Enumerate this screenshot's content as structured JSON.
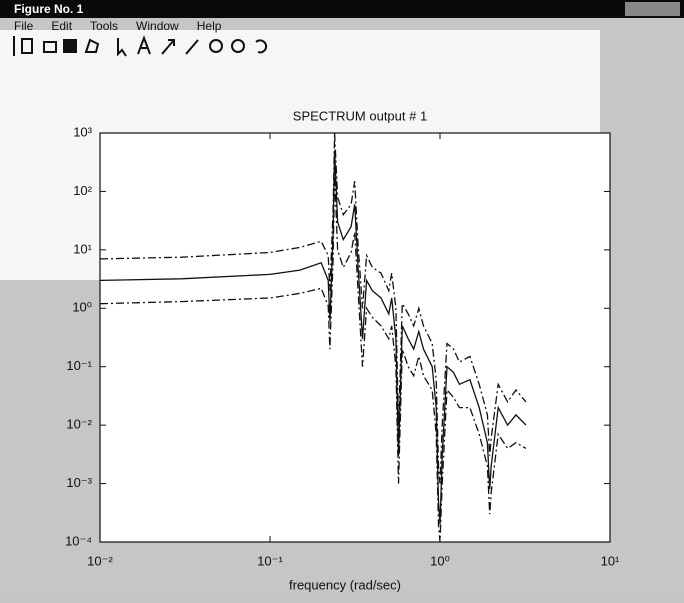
{
  "window": {
    "title": "Figure No. 1",
    "menu": [
      "File",
      "Edit",
      "Tools",
      "Window",
      "Help"
    ]
  },
  "chart_data": {
    "type": "line",
    "title": "SPECTRUM output # 1",
    "x_label": "frequency (rad/sec)",
    "xscale": "log",
    "yscale": "log",
    "grid": false,
    "xlim": [
      0.01,
      10
    ],
    "ylim": [
      0.0001,
      1000
    ],
    "xticks": [
      {
        "value": 0.01,
        "label": "10⁻²"
      },
      {
        "value": 0.1,
        "label": "10⁻¹"
      },
      {
        "value": 1,
        "label": "10⁰"
      },
      {
        "value": 10,
        "label": "10¹"
      }
    ],
    "yticks": [
      {
        "value": 0.0001,
        "label": "10⁻⁴"
      },
      {
        "value": 0.001,
        "label": "10⁻³"
      },
      {
        "value": 0.01,
        "label": "10⁻²"
      },
      {
        "value": 0.1,
        "label": "10⁻¹"
      },
      {
        "value": 1,
        "label": "10⁰"
      },
      {
        "value": 10,
        "label": "10¹"
      },
      {
        "value": 100,
        "label": "10²"
      },
      {
        "value": 1000,
        "label": "10³"
      }
    ],
    "x": [
      0.01,
      0.03,
      0.1,
      0.15,
      0.2,
      0.22,
      0.225,
      0.235,
      0.24,
      0.25,
      0.27,
      0.3,
      0.315,
      0.33,
      0.35,
      0.37,
      0.4,
      0.45,
      0.5,
      0.52,
      0.55,
      0.57,
      0.6,
      0.65,
      0.7,
      0.75,
      0.8,
      0.9,
      0.95,
      0.98,
      1.0,
      1.03,
      1.1,
      1.2,
      1.3,
      1.5,
      1.7,
      1.9,
      1.96,
      2.0,
      2.2,
      2.5,
      2.8,
      3.2
    ],
    "series": [
      {
        "color": "#111111",
        "style": "solid",
        "values": [
          3,
          3.2,
          3.8,
          4.5,
          6,
          3,
          0.6,
          20,
          500,
          30,
          15,
          25,
          60,
          5,
          0.3,
          3,
          2,
          1.5,
          0.8,
          1.5,
          0.3,
          0.003,
          0.5,
          0.3,
          0.2,
          0.4,
          0.2,
          0.1,
          0.02,
          0.0005,
          0.0002,
          0.003,
          0.1,
          0.08,
          0.05,
          0.06,
          0.02,
          0.005,
          0.0008,
          0.002,
          0.02,
          0.01,
          0.015,
          0.01
        ]
      },
      {
        "color": "#111111",
        "style": "dashdot",
        "values": [
          7,
          7.5,
          9,
          11,
          14,
          8,
          2,
          50,
          1000,
          80,
          40,
          60,
          150,
          12,
          1,
          8,
          5,
          4,
          2,
          4,
          1,
          0.01,
          1.2,
          0.8,
          0.5,
          1,
          0.5,
          0.25,
          0.06,
          0.002,
          0.001,
          0.01,
          0.25,
          0.2,
          0.12,
          0.15,
          0.05,
          0.015,
          0.003,
          0.006,
          0.05,
          0.025,
          0.04,
          0.025
        ]
      },
      {
        "color": "#111111",
        "style": "dashdot",
        "values": [
          1.2,
          1.3,
          1.5,
          1.8,
          2.2,
          1.1,
          0.2,
          7,
          200,
          10,
          5,
          9,
          20,
          2,
          0.1,
          1,
          0.7,
          0.5,
          0.3,
          0.5,
          0.1,
          0.001,
          0.2,
          0.1,
          0.07,
          0.15,
          0.07,
          0.04,
          0.007,
          0.0002,
          0.0001,
          0.001,
          0.04,
          0.03,
          0.02,
          0.02,
          0.007,
          0.002,
          0.0003,
          0.0007,
          0.007,
          0.004,
          0.005,
          0.004
        ]
      }
    ]
  }
}
